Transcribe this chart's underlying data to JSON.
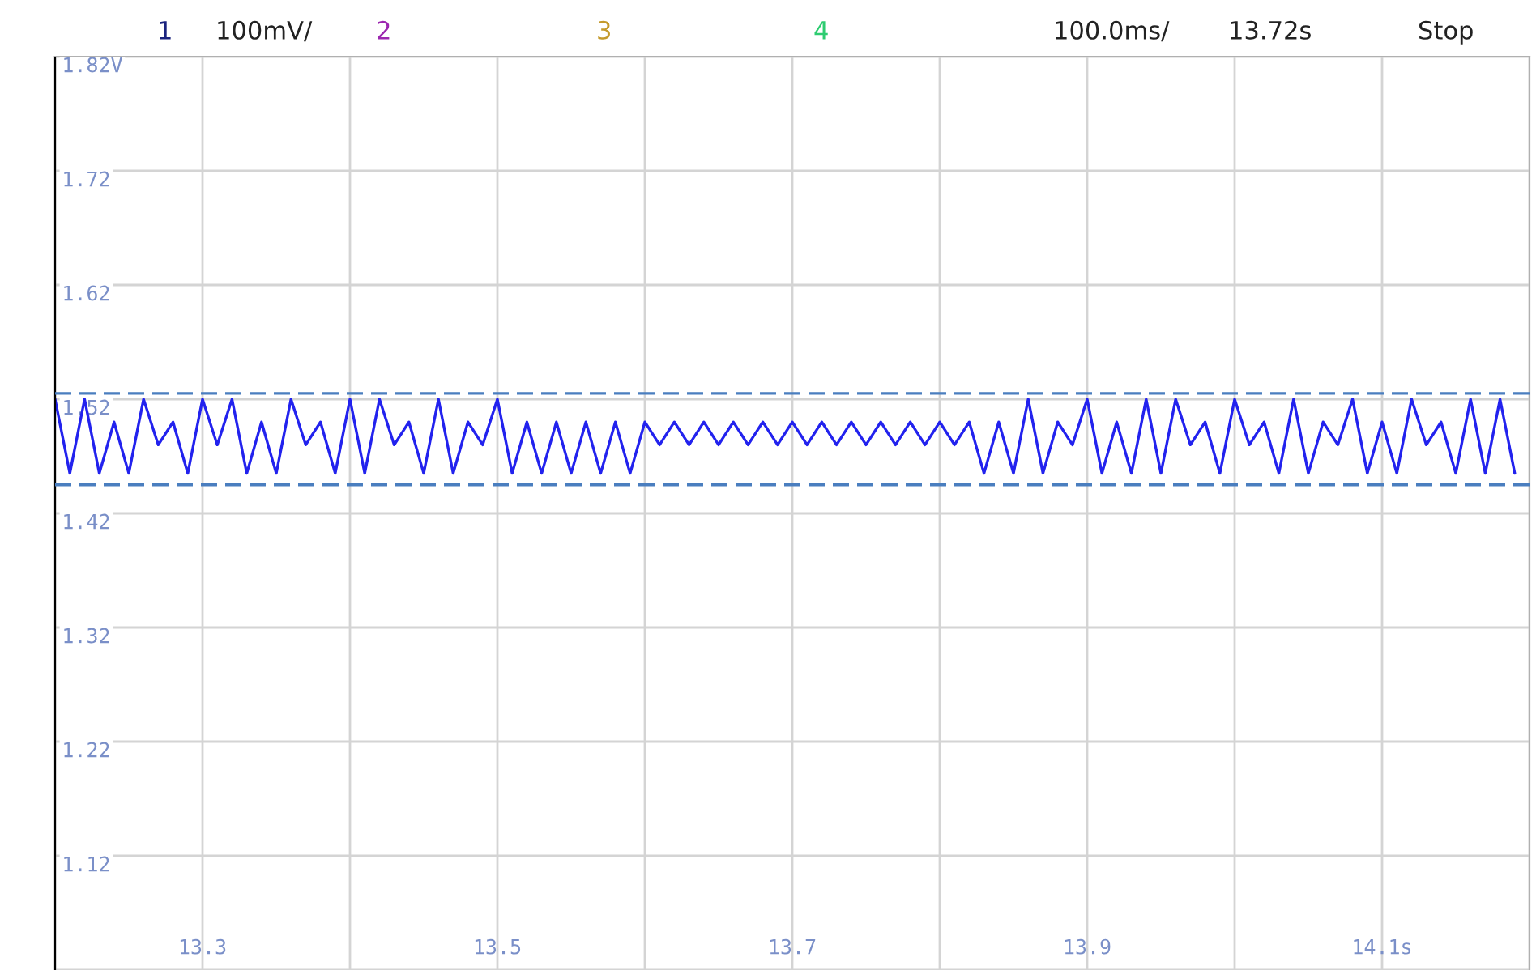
{
  "chart_data": {
    "type": "line",
    "x": [
      13.2,
      13.21,
      13.22,
      13.23,
      13.24,
      13.25,
      13.26,
      13.27,
      13.28,
      13.29,
      13.3,
      13.31,
      13.32,
      13.33,
      13.34,
      13.35,
      13.36,
      13.37,
      13.38,
      13.39,
      13.4,
      13.41,
      13.42,
      13.43,
      13.44,
      13.45,
      13.46,
      13.47,
      13.48,
      13.49,
      13.5,
      13.51,
      13.52,
      13.53,
      13.54,
      13.55,
      13.56,
      13.57,
      13.58,
      13.59,
      13.6,
      13.61,
      13.62,
      13.63,
      13.64,
      13.65,
      13.66,
      13.67,
      13.68,
      13.69,
      13.7,
      13.71,
      13.72,
      13.73,
      13.74,
      13.75,
      13.76,
      13.77,
      13.78,
      13.79,
      13.8,
      13.81,
      13.82,
      13.83,
      13.84,
      13.85,
      13.86,
      13.87,
      13.88,
      13.89,
      13.9,
      13.91,
      13.92,
      13.93,
      13.94,
      13.95,
      13.96,
      13.97,
      13.98,
      13.99,
      14.0,
      14.01,
      14.02,
      14.03,
      14.04,
      14.05,
      14.06,
      14.07,
      14.08,
      14.09,
      14.1,
      14.11,
      14.12,
      14.13,
      14.14,
      14.15,
      14.16,
      14.17,
      14.18,
      14.19
    ],
    "series": [
      {
        "color": "#2222ee",
        "values": [
          1.52,
          1.455,
          1.52,
          1.455,
          1.5,
          1.455,
          1.52,
          1.48,
          1.5,
          1.455,
          1.52,
          1.48,
          1.52,
          1.455,
          1.5,
          1.455,
          1.52,
          1.48,
          1.5,
          1.455,
          1.52,
          1.455,
          1.52,
          1.48,
          1.5,
          1.455,
          1.52,
          1.455,
          1.5,
          1.48,
          1.52,
          1.455,
          1.5,
          1.455,
          1.5,
          1.455,
          1.5,
          1.455,
          1.5,
          1.455,
          1.5,
          1.48,
          1.5,
          1.48,
          1.5,
          1.48,
          1.5,
          1.48,
          1.5,
          1.48,
          1.5,
          1.48,
          1.5,
          1.48,
          1.5,
          1.48,
          1.5,
          1.48,
          1.5,
          1.48,
          1.5,
          1.48,
          1.5,
          1.455,
          1.5,
          1.455,
          1.52,
          1.455,
          1.5,
          1.48,
          1.52,
          1.455,
          1.5,
          1.455,
          1.52,
          1.455,
          1.52,
          1.48,
          1.5,
          1.455,
          1.52,
          1.48,
          1.5,
          1.455,
          1.52,
          1.455,
          1.5,
          1.48,
          1.52,
          1.455,
          1.5,
          1.455,
          1.52,
          1.48,
          1.5,
          1.455,
          1.52,
          1.455,
          1.52,
          1.455
        ]
      }
    ],
    "xlim": [
      13.2,
      14.2
    ],
    "xticks": [
      {
        "value": 13.2,
        "label": null
      },
      13.3,
      {
        "value": 13.4,
        "label": null
      },
      13.5,
      {
        "value": 13.6,
        "label": null
      },
      13.7,
      {
        "value": 13.8,
        "label": null
      },
      13.9,
      {
        "value": 14.0,
        "label": null
      },
      {
        "value": 14.1,
        "label": "14.1s"
      },
      {
        "value": 14.2,
        "label": null
      }
    ],
    "ylim": [
      1.02,
      1.82
    ],
    "yticks": [
      {
        "value": 1.02,
        "label": null
      },
      1.12,
      1.22,
      1.32,
      1.42,
      1.52,
      1.62,
      1.72,
      {
        "value": 1.82,
        "label": "1.82V"
      }
    ],
    "ref_lines": [
      {
        "axis": "y",
        "value": 1.525,
        "color": "#4a7ebf",
        "line_style": "dashed"
      },
      {
        "axis": "y",
        "value": 1.445,
        "color": "#4a7ebf",
        "line_style": "dashed"
      }
    ],
    "annotations": [
      "1",
      "100mV/",
      "2",
      "3",
      "4",
      "100.0ms/",
      "13.72s",
      "Stop"
    ],
    "grid": true,
    "marker": "none",
    "line_style": "solid"
  }
}
